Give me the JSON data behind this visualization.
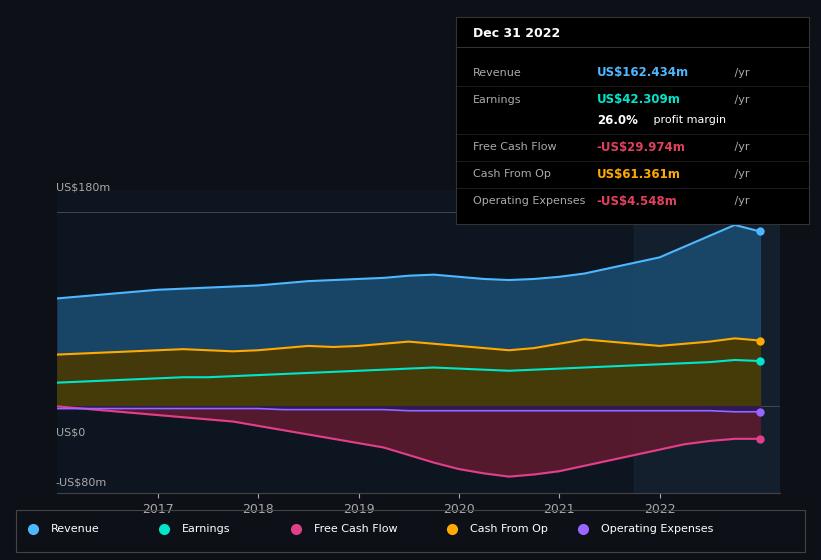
{
  "bg_color": "#0d1117",
  "plot_bg_color": "#0d1520",
  "title": "Dec 31 2022",
  "ylabel_top": "US$180m",
  "ylabel_zero": "US$0",
  "ylabel_bottom": "-US$80m",
  "ylim": [
    -80,
    200
  ],
  "xlim": [
    2016.0,
    2023.2
  ],
  "x_ticks": [
    2017,
    2018,
    2019,
    2020,
    2021,
    2022
  ],
  "series": {
    "x": [
      2016.0,
      2016.25,
      2016.5,
      2016.75,
      2017.0,
      2017.25,
      2017.5,
      2017.75,
      2018.0,
      2018.25,
      2018.5,
      2018.75,
      2019.0,
      2019.25,
      2019.5,
      2019.75,
      2020.0,
      2020.25,
      2020.5,
      2020.75,
      2021.0,
      2021.25,
      2021.5,
      2021.75,
      2022.0,
      2022.25,
      2022.5,
      2022.75,
      2023.0
    ],
    "revenue": [
      100,
      102,
      104,
      106,
      108,
      109,
      110,
      111,
      112,
      114,
      116,
      117,
      118,
      119,
      121,
      122,
      120,
      118,
      117,
      118,
      120,
      123,
      128,
      133,
      138,
      148,
      158,
      168,
      162
    ],
    "earnings": [
      22,
      23,
      24,
      25,
      26,
      27,
      27,
      28,
      29,
      30,
      31,
      32,
      33,
      34,
      35,
      36,
      35,
      34,
      33,
      34,
      35,
      36,
      37,
      38,
      39,
      40,
      41,
      43,
      42
    ],
    "free_cash_flow": [
      0,
      -2,
      -4,
      -6,
      -8,
      -10,
      -12,
      -14,
      -18,
      -22,
      -26,
      -30,
      -34,
      -38,
      -45,
      -52,
      -58,
      -62,
      -65,
      -63,
      -60,
      -55,
      -50,
      -45,
      -40,
      -35,
      -32,
      -30,
      -30
    ],
    "cash_from_op": [
      48,
      49,
      50,
      51,
      52,
      53,
      52,
      51,
      52,
      54,
      56,
      55,
      56,
      58,
      60,
      58,
      56,
      54,
      52,
      54,
      58,
      62,
      60,
      58,
      56,
      58,
      60,
      63,
      61
    ],
    "operating_expenses": [
      -2,
      -2,
      -2,
      -2,
      -2,
      -2,
      -2,
      -2,
      -2,
      -3,
      -3,
      -3,
      -3,
      -3,
      -4,
      -4,
      -4,
      -4,
      -4,
      -4,
      -4,
      -4,
      -4,
      -4,
      -4,
      -4,
      -4,
      -5,
      -5
    ]
  },
  "colors": {
    "revenue": "#4db8ff",
    "revenue_fill": "#1a4a6e",
    "earnings": "#00e5cc",
    "earnings_fill": "#1a5c55",
    "free_cash_flow": "#e0408a",
    "free_cash_flow_fill": "#5c1a2e",
    "cash_from_op": "#ffaa00",
    "cash_from_op_fill": "#4a3800",
    "operating_expenses": "#9966ff",
    "operating_expenses_fill": "#2a1a5c"
  },
  "legend": [
    {
      "label": "Revenue",
      "color": "#4db8ff"
    },
    {
      "label": "Earnings",
      "color": "#00e5cc"
    },
    {
      "label": "Free Cash Flow",
      "color": "#e0408a"
    },
    {
      "label": "Cash From Op",
      "color": "#ffaa00"
    },
    {
      "label": "Operating Expenses",
      "color": "#9966ff"
    }
  ],
  "info_title": "Dec 31 2022",
  "info_rows": [
    {
      "label": "Revenue",
      "value": "US$162.434m",
      "suffix": " /yr",
      "vcolor": "#4db8ff"
    },
    {
      "label": "Earnings",
      "value": "US$42.309m",
      "suffix": " /yr",
      "vcolor": "#00e5cc"
    },
    {
      "label": "",
      "value": "",
      "suffix": "",
      "vcolor": ""
    },
    {
      "label": "Free Cash Flow",
      "value": "-US$29.974m",
      "suffix": " /yr",
      "vcolor": "#e04060"
    },
    {
      "label": "Cash From Op",
      "value": "US$61.361m",
      "suffix": " /yr",
      "vcolor": "#ffaa00"
    },
    {
      "label": "Operating Expenses",
      "value": "-US$4.548m",
      "suffix": " /yr",
      "vcolor": "#e04060"
    }
  ],
  "profit_margin_bold": "26.0%",
  "profit_margin_text": " profit margin"
}
